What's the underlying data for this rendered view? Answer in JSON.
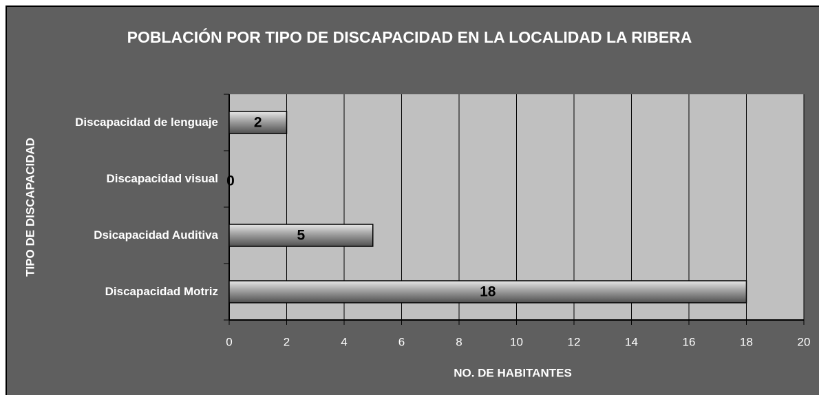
{
  "chart_data": {
    "type": "hbar",
    "title": "POBLACIÓN POR TIPO DE DISCAPACIDAD EN LA LOCALIDAD LA RIBERA",
    "x_label": "NO. DE HABITANTES",
    "y_label": "TIPO DE DISCAPACIDAD",
    "categories": [
      "Discapacidad de lenguaje",
      "Discapacidad visual",
      "Dsicapacidad Auditiva",
      "Discapacidad Motriz"
    ],
    "values": [
      2,
      0,
      5,
      18
    ],
    "color": "#a0a0a0",
    "xlim": [
      0,
      20
    ],
    "xticks": [
      0,
      2,
      4,
      6,
      8,
      10,
      12,
      14,
      16,
      18,
      20
    ],
    "grid": true
  }
}
